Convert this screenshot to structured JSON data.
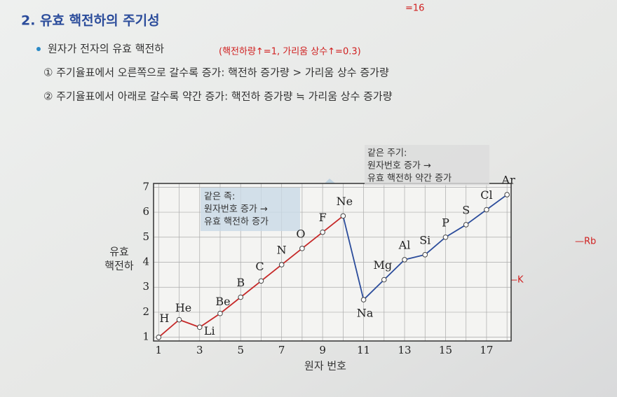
{
  "header": {
    "title": "2. 유효 핵전하의 주기성",
    "bullet": "원자가 전자의 유효 핵전하",
    "note": "(핵전하량↑=1, 가리움 상수↑=0.3)",
    "items": [
      "① 주기율표에서 오른쪽으로 갈수록 증가: 핵전하 증가량 > 가리움 상수 증가량",
      "② 주기율표에서 아래로 갈수록 약간 증가: 핵전하 증가량 ≒ 가리움 상수 증가량"
    ],
    "margin_notes": [
      "=16",
      "—Rb",
      "—K"
    ]
  },
  "chart_data": {
    "type": "line",
    "xlabel": "원자 번호",
    "ylabel": [
      "유효",
      "핵전하"
    ],
    "x": [
      1,
      2,
      3,
      4,
      5,
      6,
      7,
      8,
      9,
      10,
      11,
      12,
      13,
      14,
      15,
      16,
      17,
      18
    ],
    "values": [
      1.0,
      1.7,
      1.4,
      1.95,
      2.6,
      3.25,
      3.9,
      4.55,
      5.2,
      5.85,
      2.5,
      3.3,
      4.1,
      4.3,
      5.0,
      5.5,
      6.1,
      6.7
    ],
    "point_labels": [
      "H",
      "He",
      "Li",
      "Be",
      "B",
      "C",
      "N",
      "O",
      "F",
      "Ne",
      "Na",
      "Mg",
      "Al",
      "Si",
      "P",
      "S",
      "Cl",
      "Ar"
    ],
    "segment_colors": [
      "#c62828",
      "#c62828",
      "#c62828",
      "#c62828",
      "#c62828",
      "#c62828",
      "#c62828",
      "#c62828",
      "#c62828",
      "#2b4c9b",
      "#2b4c9b",
      "#2b4c9b",
      "#2b4c9b",
      "#2b4c9b",
      "#2b4c9b",
      "#2b4c9b",
      "#2b4c9b"
    ],
    "xlim": [
      0.75,
      18.2
    ],
    "ylim": [
      0.85,
      7.15
    ],
    "xticks": [
      1,
      3,
      5,
      7,
      9,
      11,
      13,
      15,
      17
    ],
    "x_minor_ticks": [
      2,
      4,
      6,
      8,
      10,
      12,
      14,
      16,
      18
    ],
    "yticks": [
      1,
      2,
      3,
      4,
      5,
      6,
      7
    ],
    "grid": true,
    "annotations": [
      [
        "같은 족:",
        "원자번호 증가 →",
        "유효 핵전하 증가"
      ],
      [
        "같은 주기:",
        "원자번호 증가 →",
        "유효 핵전하 약간 증가"
      ]
    ]
  }
}
